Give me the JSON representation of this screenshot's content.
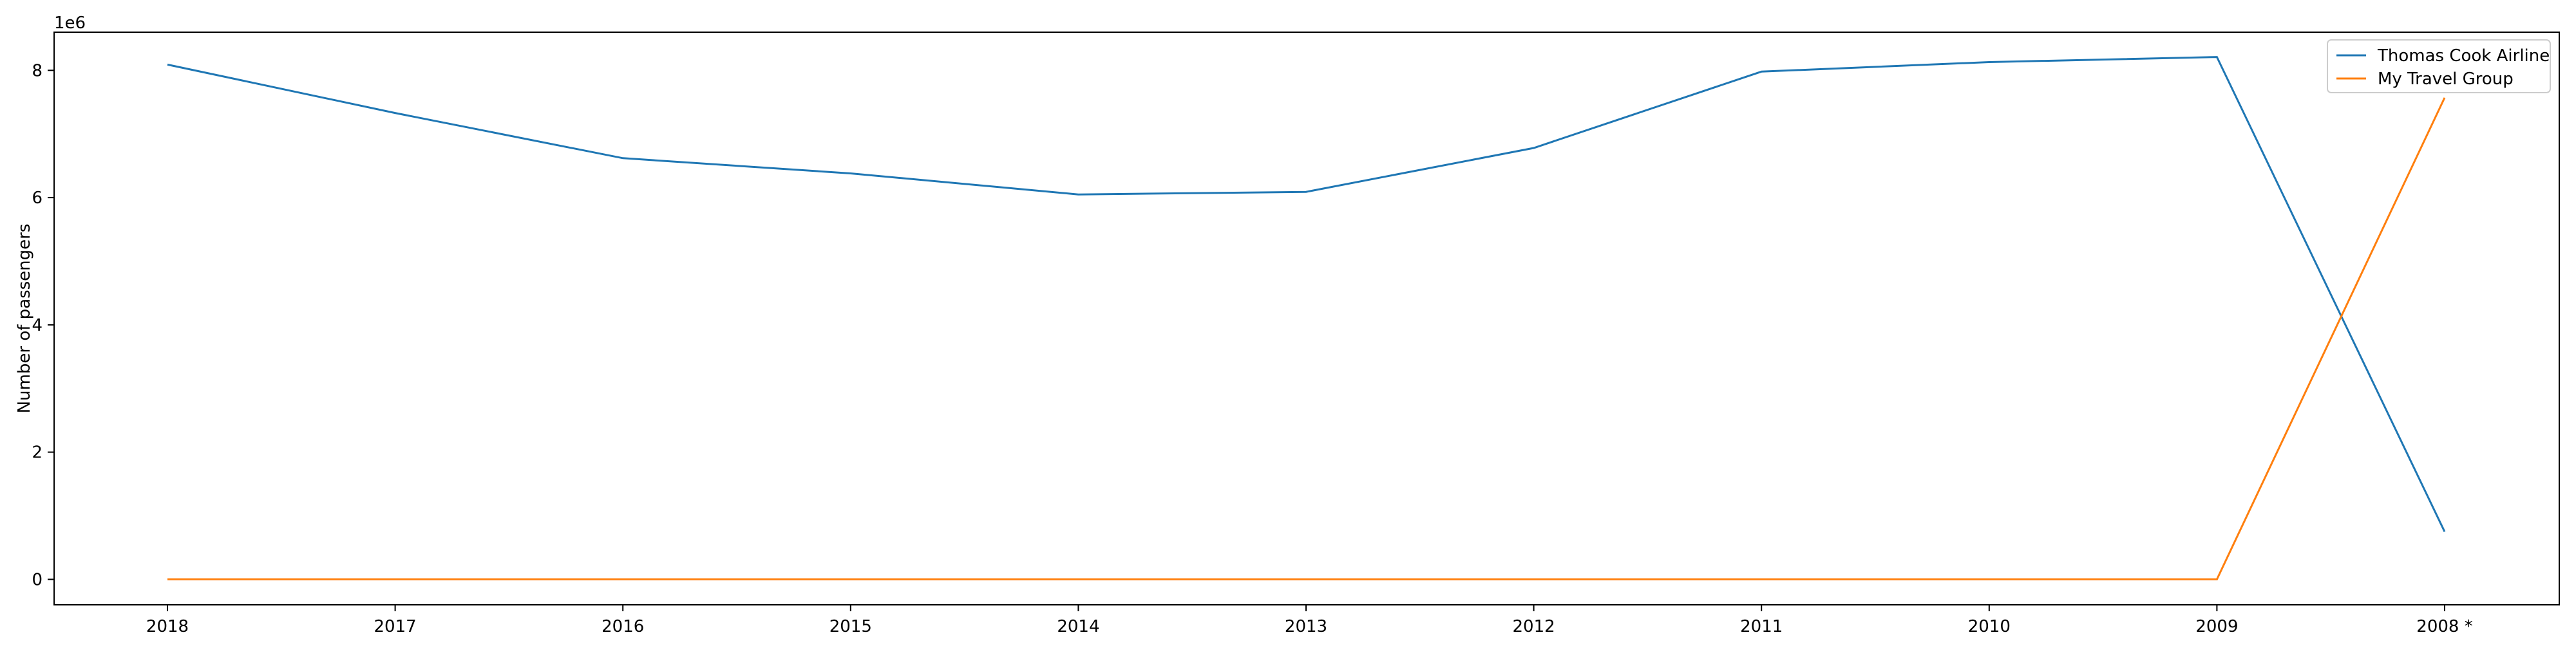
{
  "chart_data": {
    "type": "line",
    "title": "",
    "xlabel": "",
    "ylabel": "Number of passengers",
    "y_offset_text": "1e6",
    "y_scale_multiplier": 1000000,
    "categories": [
      "2018",
      "2017",
      "2016",
      "2015",
      "2014",
      "2013",
      "2012",
      "2011",
      "2010",
      "2009",
      "2008 *"
    ],
    "ylim": [
      -400000,
      8600000
    ],
    "yticks": [
      0,
      2000000,
      4000000,
      6000000,
      8000000
    ],
    "ytick_labels": [
      "0",
      "2",
      "4",
      "6",
      "8"
    ],
    "grid": false,
    "legend_position": "top-right",
    "series": [
      {
        "name": "Thomas Cook Airline",
        "color": "#1f77b4",
        "values": [
          8090000,
          7330000,
          6620000,
          6380000,
          6050000,
          6090000,
          6780000,
          7980000,
          8130000,
          8210000,
          750000
        ]
      },
      {
        "name": "My Travel Group",
        "color": "#ff7f0e",
        "values": [
          0,
          0,
          0,
          0,
          0,
          0,
          0,
          0,
          0,
          0,
          7570000
        ]
      }
    ]
  }
}
